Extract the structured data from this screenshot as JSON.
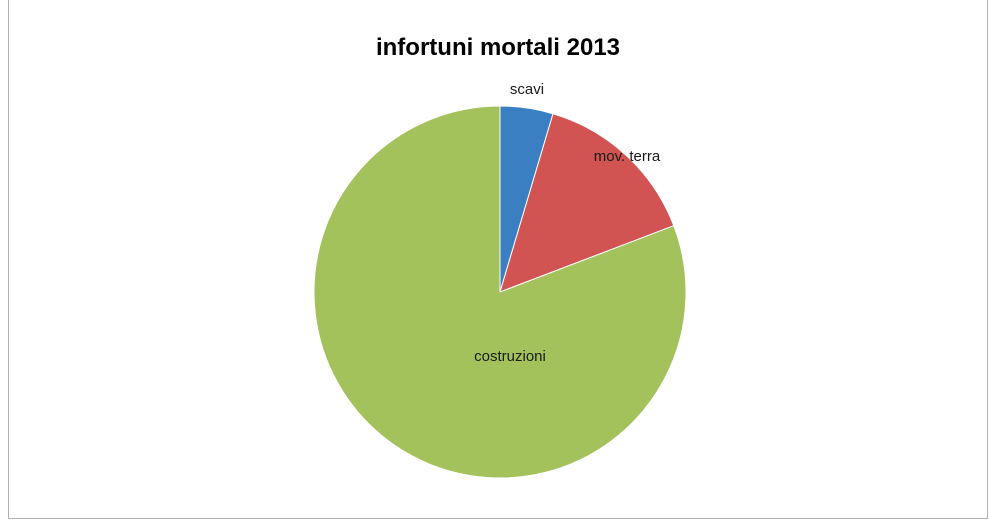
{
  "chart_data": {
    "type": "pie",
    "title": "infortuni mortali 2013",
    "categories": [
      "scavi",
      "mov. terra",
      "costruzioni"
    ],
    "values": [
      4.6,
      14.6,
      80.8
    ],
    "colors": [
      "#3a7fc1",
      "#d15352",
      "#a3c25c"
    ],
    "start_angle": "12 o'clock",
    "direction": "clockwise",
    "legend": "none"
  }
}
